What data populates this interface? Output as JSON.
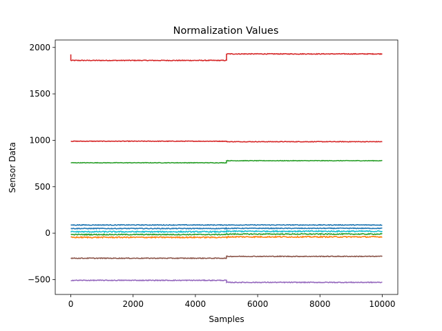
{
  "chart_data": {
    "type": "line",
    "title": "Normalization Values",
    "xlabel": "Samples",
    "ylabel": "Sensor Data",
    "xlim": [
      -500,
      10500
    ],
    "ylim": [
      -660,
      2080
    ],
    "xticks": [
      0,
      2000,
      4000,
      6000,
      8000,
      10000
    ],
    "yticks": [
      -500,
      0,
      500,
      1000,
      1500,
      2000
    ],
    "grid": false,
    "legend": "none",
    "series": [
      {
        "color": "#d62728",
        "segments": [
          {
            "x": [
              0,
              5000
            ],
            "y": 1860
          },
          {
            "x": [
              5000,
              10000
            ],
            "y": 1930
          }
        ],
        "noise": 4,
        "start_spike": 1925
      },
      {
        "color": "#d62728",
        "segments": [
          {
            "x": [
              0,
              5000
            ],
            "y": 990
          },
          {
            "x": [
              5000,
              10000
            ],
            "y": 985
          }
        ],
        "noise": 3
      },
      {
        "color": "#2ca02c",
        "segments": [
          {
            "x": [
              0,
              5000
            ],
            "y": 758
          },
          {
            "x": [
              5000,
              10000
            ],
            "y": 780
          }
        ],
        "noise": 3
      },
      {
        "color": "#1f77b4",
        "segments": [
          {
            "x": [
              0,
              5000
            ],
            "y": 88
          },
          {
            "x": [
              5000,
              10000
            ],
            "y": 88
          }
        ],
        "noise": 4
      },
      {
        "color": "#1f77b4",
        "segments": [
          {
            "x": [
              0,
              5000
            ],
            "y": 50
          },
          {
            "x": [
              5000,
              10000
            ],
            "y": 52
          }
        ],
        "noise": 4
      },
      {
        "color": "#17becf",
        "segments": [
          {
            "x": [
              0,
              5000
            ],
            "y": 15
          },
          {
            "x": [
              5000,
              10000
            ],
            "y": 20
          }
        ],
        "noise": 6
      },
      {
        "color": "#2ca02c",
        "segments": [
          {
            "x": [
              0,
              5000
            ],
            "y": -15
          },
          {
            "x": [
              5000,
              10000
            ],
            "y": -10
          }
        ],
        "noise": 5
      },
      {
        "color": "#ff7f0e",
        "segments": [
          {
            "x": [
              0,
              5000
            ],
            "y": -45
          },
          {
            "x": [
              5000,
              10000
            ],
            "y": -40
          }
        ],
        "noise": 6
      },
      {
        "color": "#8c564b",
        "segments": [
          {
            "x": [
              0,
              5000
            ],
            "y": -270
          },
          {
            "x": [
              5000,
              10000
            ],
            "y": -250
          }
        ],
        "noise": 4
      },
      {
        "color": "#9467bd",
        "segments": [
          {
            "x": [
              0,
              5000
            ],
            "y": -508
          },
          {
            "x": [
              5000,
              10000
            ],
            "y": -530
          }
        ],
        "noise": 4
      }
    ]
  }
}
